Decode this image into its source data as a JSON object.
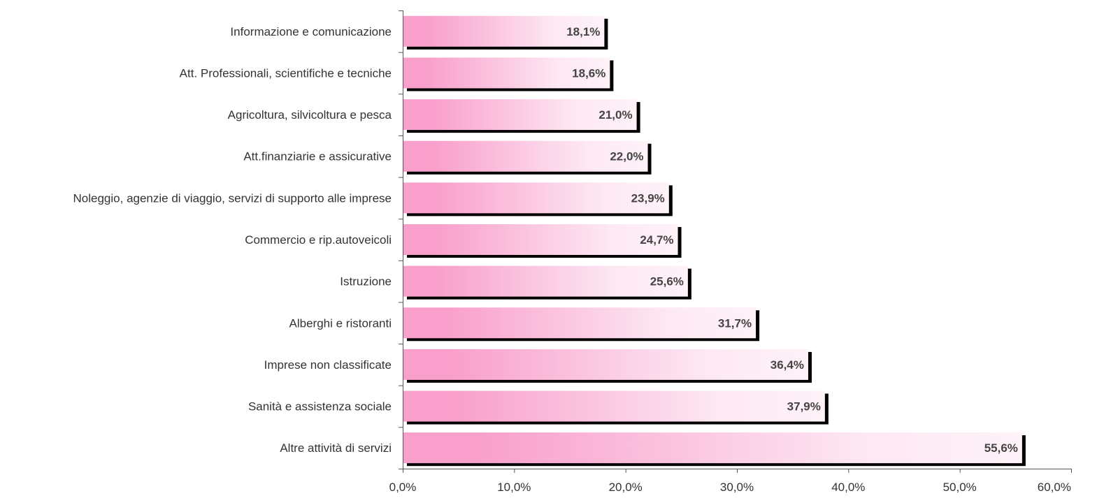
{
  "chart_data": {
    "type": "bar",
    "orientation": "horizontal",
    "categories": [
      "Informazione e comunicazione",
      "Att. Professionali, scientifiche e tecniche",
      "Agricoltura, silvicoltura e pesca",
      "Att.finanziarie e assicurative",
      "Noleggio, agenzie di viaggio, servizi di supporto alle imprese",
      "Commercio e rip.autoveicoli",
      "Istruzione",
      "Alberghi e ristoranti",
      "Imprese non classificate",
      "Sanità e assistenza sociale",
      "Altre attività di servizi"
    ],
    "values": [
      18.1,
      18.6,
      21.0,
      22.0,
      23.9,
      24.7,
      25.6,
      31.7,
      36.4,
      37.9,
      55.6
    ],
    "data_labels": [
      "18,1%",
      "18,6%",
      "21,0%",
      "22,0%",
      "23,9%",
      "24,7%",
      "25,6%",
      "31,7%",
      "36,4%",
      "37,9%",
      "55,6%"
    ],
    "x_ticks": [
      "0,0%",
      "10,0%",
      "20,0%",
      "30,0%",
      "40,0%",
      "50,0%",
      "60,0%"
    ],
    "xlim": [
      0,
      60
    ],
    "title": "",
    "xlabel": "",
    "ylabel": "",
    "grid": false,
    "legend": "none",
    "colors": {
      "bar_dark": "#f99fcb",
      "bar_light": "#fde8f3",
      "bar_end": "#fff2f9",
      "shadow": "#000000",
      "text": "#333333",
      "axis": "#555555"
    }
  }
}
